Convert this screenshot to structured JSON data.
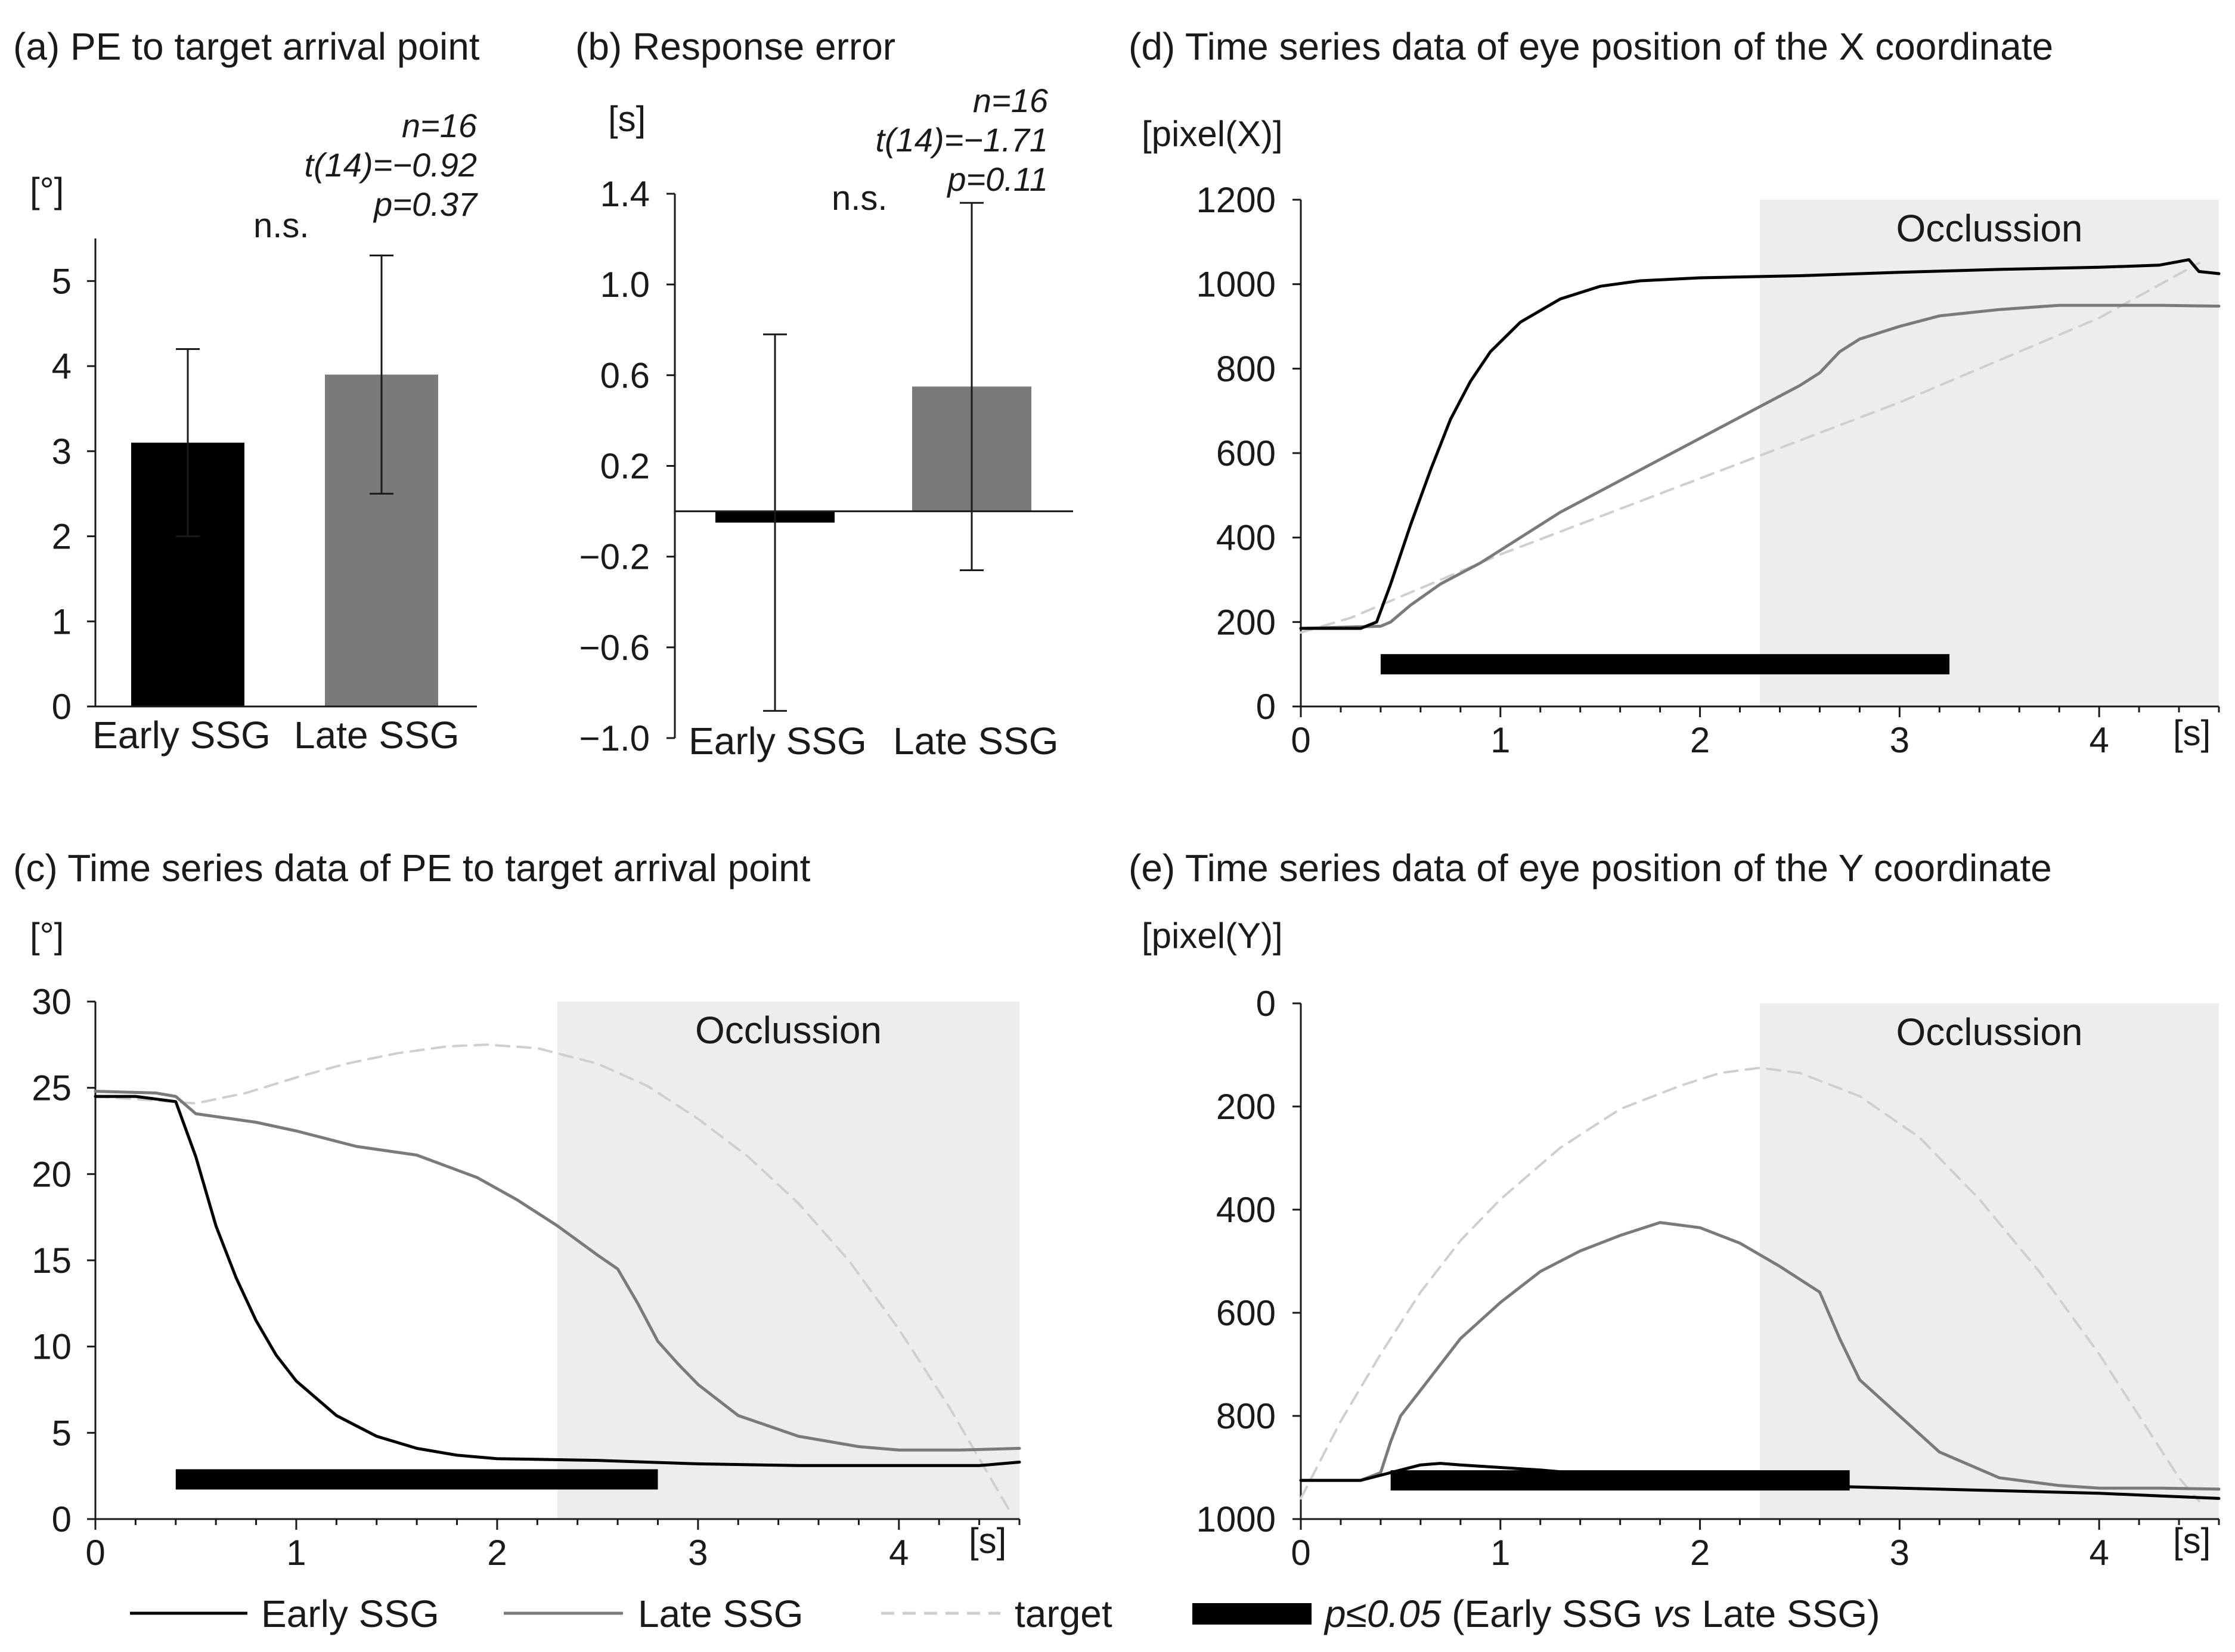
{
  "colors": {
    "early": "#000000",
    "late": "#7a7a7a",
    "target": "#cfcfcf",
    "occlusion": "#ededed",
    "sig_bar": "#000000",
    "axis": "#1a1a1a"
  },
  "chart_data": [
    {
      "id": "a",
      "type": "bar",
      "title": "(a) PE to target arrival point",
      "ylabel": "[°]",
      "ylim": [
        0,
        5.5
      ],
      "yticks": [
        "0",
        "1",
        "2",
        "3",
        "4",
        "5"
      ],
      "categories": [
        "Early SSG",
        "Late SSG"
      ],
      "values": [
        3.1,
        3.9
      ],
      "errors": [
        1.1,
        1.4
      ],
      "significance": "n.s.",
      "stats": [
        "n=16",
        "t(14)=−0.92",
        "p=0.37"
      ]
    },
    {
      "id": "b",
      "type": "bar",
      "title": "(b) Response error",
      "ylabel": "[s]",
      "ylim": [
        -1.0,
        1.4
      ],
      "yticks": [
        "−1.0",
        "−0.6",
        "−0.2",
        "0.2",
        "0.6",
        "1.0",
        "1.4"
      ],
      "categories": [
        "Early SSG",
        "Late SSG"
      ],
      "values": [
        -0.05,
        0.55
      ],
      "errors": [
        0.83,
        0.81
      ],
      "significance": "n.s.",
      "stats": [
        "n=16",
        "t(14)=−1.71",
        "p=0.11"
      ]
    },
    {
      "id": "c",
      "type": "line",
      "title": "(c) Time series data of PE to target arrival point",
      "ylabel": "[°]",
      "xlabel": "[s]",
      "xlim": [
        0,
        4.6
      ],
      "ylim": [
        0,
        30
      ],
      "xticks": [
        "0",
        "1",
        "2",
        "3",
        "4"
      ],
      "yticks": [
        "0",
        "5",
        "10",
        "15",
        "20",
        "25",
        "30"
      ],
      "occlusion": {
        "label": "Occlussion",
        "x": [
          2.3,
          4.6
        ]
      },
      "significance": {
        "x": [
          0.4,
          2.8
        ],
        "y": 2.3
      },
      "series": [
        {
          "name": "Early SSG",
          "x": [
            0,
            0.2,
            0.4,
            0.5,
            0.6,
            0.7,
            0.8,
            0.9,
            1.0,
            1.2,
            1.4,
            1.6,
            1.8,
            2.0,
            2.5,
            3.0,
            3.5,
            4.0,
            4.4,
            4.6
          ],
          "y": [
            24.5,
            24.5,
            24.2,
            21.0,
            17.0,
            14.0,
            11.5,
            9.5,
            8.0,
            6.0,
            4.8,
            4.1,
            3.7,
            3.5,
            3.4,
            3.2,
            3.1,
            3.1,
            3.1,
            3.3
          ]
        },
        {
          "name": "Late SSG",
          "x": [
            0,
            0.3,
            0.4,
            0.5,
            0.8,
            1.0,
            1.3,
            1.6,
            1.9,
            2.1,
            2.3,
            2.5,
            2.6,
            2.7,
            2.8,
            2.9,
            3.0,
            3.2,
            3.5,
            3.8,
            4.0,
            4.3,
            4.6
          ],
          "y": [
            24.8,
            24.7,
            24.5,
            23.5,
            23.0,
            22.5,
            21.6,
            21.1,
            19.8,
            18.5,
            17.0,
            15.3,
            14.5,
            12.5,
            10.3,
            9.0,
            7.8,
            6.0,
            4.8,
            4.2,
            4.0,
            4.0,
            4.1
          ]
        },
        {
          "name": "target",
          "x": [
            0,
            0.25,
            0.5,
            0.75,
            1.0,
            1.25,
            1.5,
            1.75,
            1.95,
            2.2,
            2.5,
            2.75,
            3.0,
            3.25,
            3.5,
            3.75,
            4.0,
            4.25,
            4.4,
            4.55
          ],
          "y": [
            24.5,
            24.3,
            24.1,
            24.7,
            25.6,
            26.4,
            27.0,
            27.4,
            27.5,
            27.3,
            26.4,
            25.1,
            23.2,
            21.0,
            18.3,
            15.0,
            11.0,
            6.5,
            3.5,
            0.5
          ]
        }
      ]
    },
    {
      "id": "d",
      "type": "line",
      "title": "(d) Time series data of eye position of the X coordinate",
      "ylabel": "[pixel(X)]",
      "xlabel": "[s]",
      "xlim": [
        0,
        4.6
      ],
      "ylim": [
        0,
        1200
      ],
      "xticks": [
        "0",
        "1",
        "2",
        "3",
        "4"
      ],
      "yticks": [
        "0",
        "200",
        "400",
        "600",
        "800",
        "1000",
        "1200"
      ],
      "occlusion": {
        "label": "Occlussion",
        "x": [
          2.3,
          4.6
        ]
      },
      "significance": {
        "x": [
          0.4,
          3.25
        ],
        "y": 100
      },
      "series": [
        {
          "name": "Early SSG",
          "x": [
            0,
            0.3,
            0.38,
            0.45,
            0.55,
            0.65,
            0.75,
            0.85,
            0.95,
            1.1,
            1.3,
            1.5,
            1.7,
            2.0,
            2.5,
            3.0,
            3.5,
            4.0,
            4.3,
            4.45,
            4.5,
            4.6
          ],
          "y": [
            185,
            185,
            200,
            290,
            430,
            560,
            680,
            770,
            840,
            910,
            965,
            995,
            1008,
            1015,
            1020,
            1028,
            1035,
            1040,
            1045,
            1058,
            1030,
            1025
          ]
        },
        {
          "name": "Late SSG",
          "x": [
            0,
            0.4,
            0.45,
            0.55,
            0.7,
            0.9,
            1.1,
            1.3,
            1.5,
            1.7,
            1.9,
            2.1,
            2.3,
            2.5,
            2.6,
            2.7,
            2.8,
            3.0,
            3.2,
            3.5,
            3.8,
            4.0,
            4.3,
            4.6
          ],
          "y": [
            185,
            190,
            200,
            240,
            290,
            340,
            400,
            460,
            510,
            560,
            610,
            660,
            710,
            760,
            790,
            840,
            870,
            900,
            925,
            940,
            950,
            950,
            950,
            948
          ]
        },
        {
          "name": "target",
          "x": [
            0,
            0.25,
            0.5,
            1.0,
            1.5,
            2.0,
            2.5,
            3.0,
            3.5,
            4.0,
            4.5
          ],
          "y": [
            175,
            210,
            260,
            360,
            450,
            540,
            630,
            720,
            820,
            920,
            1050
          ]
        }
      ]
    },
    {
      "id": "e",
      "type": "line",
      "title": "(e) Time series data of eye position of the Y coordinate",
      "ylabel": "[pixel(Y)]",
      "xlabel": "[s]",
      "xlim": [
        0,
        4.6
      ],
      "ylim": [
        1000,
        0
      ],
      "xticks": [
        "0",
        "1",
        "2",
        "3",
        "4"
      ],
      "yticks": [
        "0",
        "200",
        "400",
        "600",
        "800",
        "1000"
      ],
      "occlusion": {
        "label": "Occlussion",
        "x": [
          2.3,
          4.6
        ]
      },
      "significance": {
        "x": [
          0.45,
          2.75
        ],
        "y": 925
      },
      "series": [
        {
          "name": "Early SSG",
          "x": [
            0,
            0.3,
            0.4,
            0.5,
            0.6,
            0.7,
            0.8,
            1.0,
            1.2,
            1.5,
            2.0,
            2.5,
            3.0,
            3.5,
            4.0,
            4.3,
            4.6
          ],
          "y": [
            925,
            925,
            915,
            905,
            895,
            892,
            895,
            900,
            905,
            915,
            925,
            935,
            940,
            945,
            950,
            955,
            960
          ]
        },
        {
          "name": "Late SSG",
          "x": [
            0,
            0.3,
            0.4,
            0.45,
            0.5,
            0.6,
            0.8,
            1.0,
            1.2,
            1.4,
            1.6,
            1.8,
            2.0,
            2.2,
            2.4,
            2.6,
            2.7,
            2.8,
            3.0,
            3.2,
            3.5,
            3.8,
            4.0,
            4.3,
            4.6
          ],
          "y": [
            925,
            925,
            910,
            850,
            800,
            750,
            650,
            580,
            520,
            480,
            450,
            425,
            435,
            465,
            510,
            560,
            650,
            730,
            800,
            870,
            920,
            935,
            940,
            940,
            942
          ]
        },
        {
          "name": "target",
          "x": [
            0,
            0.2,
            0.4,
            0.6,
            0.8,
            1.0,
            1.3,
            1.6,
            1.9,
            2.1,
            2.3,
            2.5,
            2.8,
            3.1,
            3.4,
            3.7,
            4.0,
            4.2,
            4.4,
            4.5
          ],
          "y": [
            960,
            810,
            680,
            560,
            460,
            380,
            280,
            205,
            160,
            135,
            125,
            135,
            180,
            260,
            380,
            520,
            680,
            800,
            920,
            965
          ]
        }
      ]
    }
  ],
  "legend": {
    "early": "Early SSG",
    "late": "Late SSG",
    "target": "target",
    "sig_p": "p≤0.05",
    "sig_open": " (Early SSG ",
    "sig_vs": "vs",
    "sig_close": " Late SSG)"
  }
}
